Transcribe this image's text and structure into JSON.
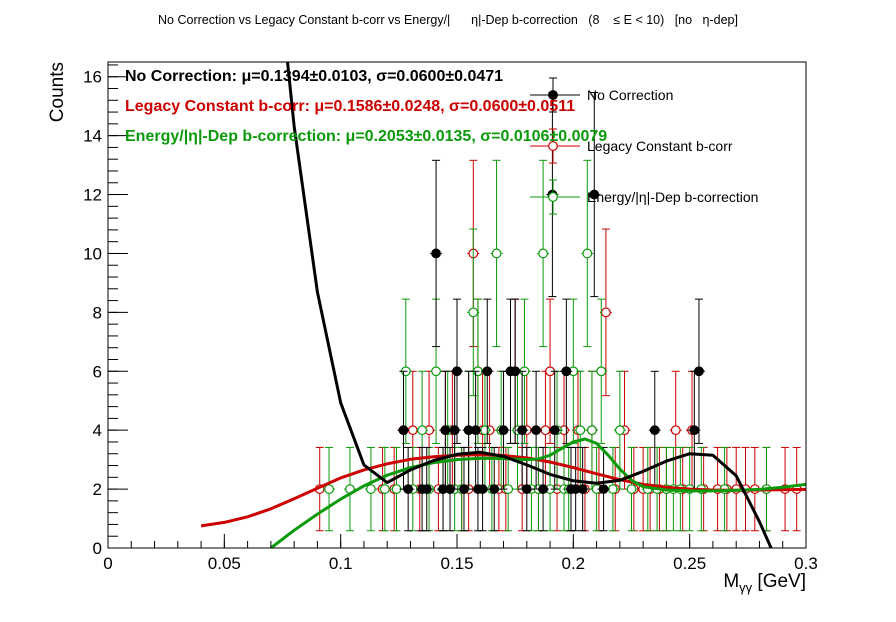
{
  "canvas_title": "No Correction vs Legacy Constant b-corr vs Energy/|      η|-Dep b-correction   (8    ≤ E < 10)   [no   η-dep]",
  "chart_data": {
    "type": "scatter",
    "xlabel": "M",
    "xlabel_sub": "γγ",
    "xlabel_unit": " [GeV]",
    "ylabel": "Counts",
    "xlim": [
      0,
      0.3
    ],
    "ylim": [
      0,
      16.5
    ],
    "x_ticks": [
      0,
      0.05,
      0.1,
      0.15,
      0.2,
      0.25,
      0.3
    ],
    "x_tick_labels": [
      "0",
      "0.05",
      "0.1",
      "0.15",
      "0.2",
      "0.25",
      "0.3"
    ],
    "y_ticks": [
      0,
      2,
      4,
      6,
      8,
      10,
      12,
      14,
      16
    ],
    "y_tick_labels": [
      "0",
      "2",
      "4",
      "6",
      "8",
      "10",
      "12",
      "14",
      "16"
    ],
    "grid": false,
    "legend_position": "top-right",
    "stats": [
      {
        "label": "No Correction:",
        "text": "μ=0.1394±0.0103, σ=0.0600±0.0471",
        "color": "#000000"
      },
      {
        "label": "Legacy Constant b-corr:",
        "text": "μ=0.1586±0.0248, σ=0.0600±0.0511",
        "color": "#cc0000"
      },
      {
        "label": "Energy/|η|-Dep b-correction:",
        "text": "μ=0.2053±0.0135, σ=0.0106±0.0079",
        "color": "#0b9a0b"
      }
    ],
    "series": [
      {
        "name": "No Correction",
        "color": "#000000",
        "marker": "filled",
        "points": [
          [
            0.127,
            4
          ],
          [
            0.129,
            2
          ],
          [
            0.135,
            2
          ],
          [
            0.137,
            2
          ],
          [
            0.141,
            10
          ],
          [
            0.144,
            2
          ],
          [
            0.145,
            4
          ],
          [
            0.147,
            2
          ],
          [
            0.149,
            4
          ],
          [
            0.15,
            6
          ],
          [
            0.153,
            2
          ],
          [
            0.155,
            4
          ],
          [
            0.158,
            4
          ],
          [
            0.159,
            2
          ],
          [
            0.161,
            2
          ],
          [
            0.163,
            6
          ],
          [
            0.166,
            2
          ],
          [
            0.17,
            4
          ],
          [
            0.173,
            6
          ],
          [
            0.175,
            6
          ],
          [
            0.178,
            4
          ],
          [
            0.18,
            2
          ],
          [
            0.184,
            4
          ],
          [
            0.187,
            2
          ],
          [
            0.191,
            12
          ],
          [
            0.192,
            4
          ],
          [
            0.197,
            6
          ],
          [
            0.199,
            2
          ],
          [
            0.201,
            2
          ],
          [
            0.204,
            2
          ],
          [
            0.209,
            12
          ],
          [
            0.213,
            2
          ],
          [
            0.235,
            4
          ],
          [
            0.252,
            4
          ],
          [
            0.254,
            6
          ]
        ],
        "fit": [
          [
            0.07,
            22.0
          ],
          [
            0.08,
            14.33
          ],
          [
            0.09,
            8.69
          ],
          [
            0.1,
            4.93
          ],
          [
            0.11,
            2.82
          ],
          [
            0.12,
            2.22
          ],
          [
            0.13,
            2.65
          ],
          [
            0.14,
            2.97
          ],
          [
            0.15,
            3.18
          ],
          [
            0.16,
            3.25
          ],
          [
            0.17,
            3.11
          ],
          [
            0.18,
            2.82
          ],
          [
            0.19,
            2.5
          ],
          [
            0.2,
            2.28
          ],
          [
            0.21,
            2.2
          ],
          [
            0.22,
            2.3
          ],
          [
            0.23,
            2.6
          ],
          [
            0.24,
            2.95
          ],
          [
            0.25,
            3.2
          ],
          [
            0.26,
            3.15
          ],
          [
            0.27,
            2.45
          ],
          [
            0.28,
            0.89
          ],
          [
            0.285,
            0.0
          ]
        ]
      },
      {
        "name": "Legacy Constant b-corr",
        "color": "#cc0000",
        "marker": "open",
        "points": [
          [
            0.091,
            2
          ],
          [
            0.118,
            2
          ],
          [
            0.123,
            2
          ],
          [
            0.127,
            4
          ],
          [
            0.131,
            4
          ],
          [
            0.134,
            2
          ],
          [
            0.138,
            4
          ],
          [
            0.142,
            2
          ],
          [
            0.145,
            4
          ],
          [
            0.148,
            4
          ],
          [
            0.152,
            2
          ],
          [
            0.155,
            2
          ],
          [
            0.157,
            10
          ],
          [
            0.159,
            6
          ],
          [
            0.161,
            4
          ],
          [
            0.164,
            4
          ],
          [
            0.168,
            2
          ],
          [
            0.171,
            2
          ],
          [
            0.175,
            6
          ],
          [
            0.178,
            2
          ],
          [
            0.18,
            4
          ],
          [
            0.185,
            2
          ],
          [
            0.188,
            4
          ],
          [
            0.19,
            6
          ],
          [
            0.193,
            2
          ],
          [
            0.196,
            4
          ],
          [
            0.199,
            2
          ],
          [
            0.202,
            4
          ],
          [
            0.205,
            2
          ],
          [
            0.208,
            4
          ],
          [
            0.211,
            2
          ],
          [
            0.214,
            8
          ],
          [
            0.218,
            2
          ],
          [
            0.222,
            4
          ],
          [
            0.226,
            2
          ],
          [
            0.23,
            2
          ],
          [
            0.233,
            2
          ],
          [
            0.237,
            2
          ],
          [
            0.24,
            2
          ],
          [
            0.244,
            4
          ],
          [
            0.247,
            2
          ],
          [
            0.251,
            4
          ],
          [
            0.256,
            2
          ],
          [
            0.262,
            2
          ],
          [
            0.266,
            2
          ],
          [
            0.27,
            2
          ],
          [
            0.274,
            2
          ],
          [
            0.278,
            2
          ],
          [
            0.283,
            2
          ],
          [
            0.291,
            2
          ],
          [
            0.296,
            2
          ]
        ],
        "fit": [
          [
            0.04,
            0.75
          ],
          [
            0.05,
            0.87
          ],
          [
            0.06,
            1.06
          ],
          [
            0.07,
            1.33
          ],
          [
            0.08,
            1.67
          ],
          [
            0.09,
            2.03
          ],
          [
            0.1,
            2.38
          ],
          [
            0.11,
            2.65
          ],
          [
            0.12,
            2.86
          ],
          [
            0.13,
            3.01
          ],
          [
            0.14,
            3.1
          ],
          [
            0.15,
            3.15
          ],
          [
            0.16,
            3.17
          ],
          [
            0.17,
            3.14
          ],
          [
            0.18,
            3.06
          ],
          [
            0.19,
            2.92
          ],
          [
            0.2,
            2.73
          ],
          [
            0.21,
            2.52
          ],
          [
            0.22,
            2.32
          ],
          [
            0.23,
            2.16
          ],
          [
            0.24,
            2.06
          ],
          [
            0.25,
            2.0
          ],
          [
            0.26,
            1.97
          ],
          [
            0.27,
            1.96
          ],
          [
            0.28,
            1.97
          ],
          [
            0.29,
            1.98
          ],
          [
            0.3,
            1.99
          ]
        ]
      },
      {
        "name": "Energy/|η|-Dep b-correction",
        "color": "#0b9a0b",
        "marker": "open",
        "points": [
          [
            0.095,
            2
          ],
          [
            0.104,
            2
          ],
          [
            0.113,
            2
          ],
          [
            0.119,
            2
          ],
          [
            0.124,
            2
          ],
          [
            0.128,
            6
          ],
          [
            0.131,
            2
          ],
          [
            0.135,
            4
          ],
          [
            0.138,
            2
          ],
          [
            0.141,
            6
          ],
          [
            0.144,
            2
          ],
          [
            0.146,
            4
          ],
          [
            0.149,
            2
          ],
          [
            0.152,
            2
          ],
          [
            0.155,
            4
          ],
          [
            0.157,
            8
          ],
          [
            0.159,
            6
          ],
          [
            0.162,
            4
          ],
          [
            0.165,
            2
          ],
          [
            0.167,
            10
          ],
          [
            0.169,
            4
          ],
          [
            0.172,
            2
          ],
          [
            0.176,
            4
          ],
          [
            0.179,
            6
          ],
          [
            0.182,
            2
          ],
          [
            0.185,
            2
          ],
          [
            0.187,
            10
          ],
          [
            0.19,
            2
          ],
          [
            0.193,
            4
          ],
          [
            0.196,
            2
          ],
          [
            0.198,
            2
          ],
          [
            0.2,
            6
          ],
          [
            0.203,
            4
          ],
          [
            0.206,
            10
          ],
          [
            0.208,
            4
          ],
          [
            0.21,
            2
          ],
          [
            0.212,
            6
          ],
          [
            0.217,
            2
          ],
          [
            0.22,
            4
          ],
          [
            0.225,
            2
          ],
          [
            0.232,
            2
          ],
          [
            0.236,
            2
          ],
          [
            0.24,
            2
          ],
          [
            0.243,
            2
          ],
          [
            0.246,
            2
          ],
          [
            0.25,
            2
          ],
          [
            0.255,
            2
          ],
          [
            0.265,
            2
          ],
          [
            0.283,
            2
          ]
        ],
        "fit": [
          [
            0.07,
            0.0
          ],
          [
            0.08,
            0.6
          ],
          [
            0.09,
            1.15
          ],
          [
            0.1,
            1.66
          ],
          [
            0.11,
            2.11
          ],
          [
            0.12,
            2.47
          ],
          [
            0.13,
            2.73
          ],
          [
            0.14,
            2.9
          ],
          [
            0.15,
            3.0
          ],
          [
            0.16,
            3.05
          ],
          [
            0.17,
            3.04
          ],
          [
            0.18,
            3.0
          ],
          [
            0.185,
            3.02
          ],
          [
            0.19,
            3.15
          ],
          [
            0.195,
            3.38
          ],
          [
            0.2,
            3.6
          ],
          [
            0.205,
            3.7
          ],
          [
            0.21,
            3.55
          ],
          [
            0.215,
            3.15
          ],
          [
            0.22,
            2.68
          ],
          [
            0.225,
            2.3
          ],
          [
            0.23,
            2.08
          ],
          [
            0.24,
            1.97
          ],
          [
            0.25,
            1.94
          ],
          [
            0.26,
            1.94
          ],
          [
            0.27,
            1.96
          ],
          [
            0.28,
            1.99
          ],
          [
            0.29,
            2.06
          ],
          [
            0.3,
            2.16
          ]
        ]
      }
    ]
  }
}
